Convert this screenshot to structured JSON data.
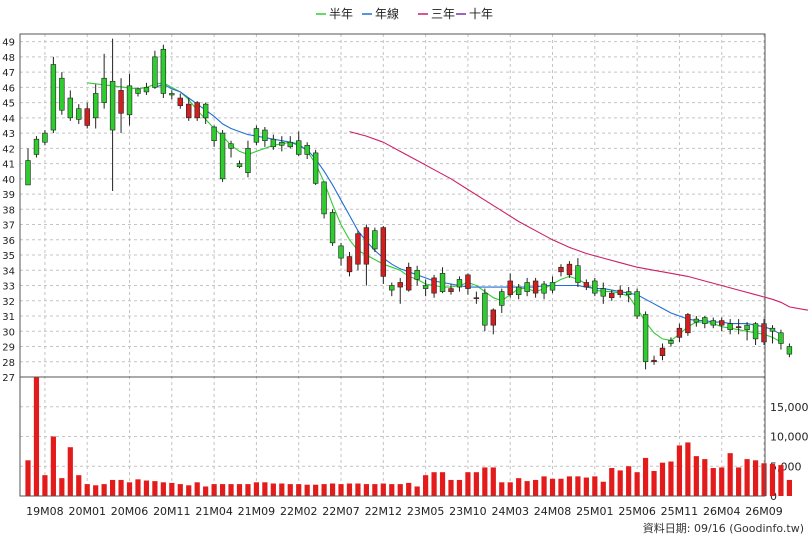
{
  "legend": [
    {
      "label": "半年",
      "color": "#33cc33"
    },
    {
      "label": "年線",
      "color": "#1f6fd6"
    },
    {
      "label": "三年",
      "color": "#cc1f66"
    },
    {
      "label": "十年",
      "color": "#7f2fa6"
    }
  ],
  "footer": {
    "source_text": "資料日期: 09/16  (Goodinfo.tw)"
  },
  "colors": {
    "up": "#d11f1f",
    "down": "#2fcc2f",
    "grid": "#c4c4c4",
    "volume": "#e41b1b"
  },
  "chart_data": {
    "type": "candlestick",
    "title": "",
    "legend_position": "top-center",
    "grid": true,
    "price_axis": {
      "ylim": [
        27,
        49.5
      ],
      "ticks": [
        27,
        28,
        29,
        30,
        31,
        32,
        33,
        34,
        35,
        36,
        37,
        38,
        39,
        40,
        41,
        42,
        43,
        44,
        45,
        46,
        47,
        48,
        49
      ],
      "position": "left"
    },
    "volume_axis": {
      "ylim": [
        0,
        20000
      ],
      "ticks": [
        0,
        5000,
        10000,
        15000
      ],
      "tick_labels": [
        "0",
        "5,000",
        "10,000",
        "15,000"
      ],
      "position": "right"
    },
    "x_ticks": [
      {
        "index": 2,
        "label": "19M08"
      },
      {
        "index": 7,
        "label": "20M01"
      },
      {
        "index": 12,
        "label": "20M06"
      },
      {
        "index": 17,
        "label": "20M11"
      },
      {
        "index": 22,
        "label": "21M04"
      },
      {
        "index": 27,
        "label": "21M09"
      },
      {
        "index": 32,
        "label": "22M02"
      },
      {
        "index": 37,
        "label": "22M07"
      },
      {
        "index": 42,
        "label": "22M12"
      },
      {
        "index": 47,
        "label": "23M05"
      },
      {
        "index": 52,
        "label": "23M10"
      },
      {
        "index": 57,
        "label": "24M03"
      },
      {
        "index": 62,
        "label": "24M08"
      },
      {
        "index": 67,
        "label": "25M01"
      },
      {
        "index": 72,
        "label": "25M06"
      },
      {
        "index": 77,
        "label": "25M11"
      },
      {
        "index": 82,
        "label": "26M04"
      },
      {
        "index": 87,
        "label": "26M09"
      }
    ],
    "candles": [
      [
        41.2,
        39.6,
        42.0,
        39.6,
        6000
      ],
      [
        42.6,
        41.6,
        42.8,
        41.4,
        20000
      ],
      [
        43.0,
        42.4,
        43.2,
        42.2,
        3500
      ],
      [
        47.5,
        43.2,
        48.0,
        43.0,
        10000
      ],
      [
        46.6,
        44.5,
        47.0,
        44.2,
        3000
      ],
      [
        45.3,
        44.0,
        45.8,
        43.8,
        8200
      ],
      [
        44.6,
        43.9,
        44.9,
        43.6,
        3500
      ],
      [
        43.5,
        44.6,
        45.0,
        43.3,
        2000
      ],
      [
        45.6,
        44.0,
        46.2,
        43.3,
        1800
      ],
      [
        46.6,
        45.0,
        48.2,
        44.6,
        2000
      ],
      [
        46.4,
        43.2,
        49.2,
        39.2,
        2700
      ],
      [
        44.3,
        45.8,
        46.6,
        43.0,
        2700
      ],
      [
        46.1,
        44.2,
        46.9,
        43.5,
        2300
      ],
      [
        45.9,
        45.6,
        46.0,
        45.4,
        2800
      ],
      [
        46.0,
        45.7,
        46.3,
        45.5,
        2600
      ],
      [
        48.0,
        46.0,
        48.4,
        45.9,
        2500
      ],
      [
        48.5,
        45.6,
        48.8,
        45.3,
        2300
      ],
      [
        45.6,
        45.5,
        45.8,
        45.2,
        2200
      ],
      [
        44.8,
        45.3,
        45.6,
        44.6,
        2000
      ],
      [
        44.0,
        44.9,
        45.3,
        43.8,
        1800
      ],
      [
        44.0,
        45.0,
        45.1,
        43.8,
        2300
      ],
      [
        44.9,
        44.0,
        45.0,
        43.6,
        1600
      ],
      [
        43.4,
        42.5,
        43.5,
        42.1,
        2000
      ],
      [
        43.0,
        40.0,
        43.2,
        39.8,
        2000
      ],
      [
        42.3,
        42.0,
        42.5,
        41.4,
        2000
      ],
      [
        41.0,
        40.8,
        41.2,
        40.7,
        2000
      ],
      [
        42.0,
        40.4,
        42.5,
        40.1,
        2000
      ],
      [
        43.3,
        42.4,
        43.5,
        42.2,
        2300
      ],
      [
        43.2,
        42.5,
        43.4,
        42.1,
        2300
      ],
      [
        42.6,
        42.1,
        42.9,
        41.9,
        2100
      ],
      [
        42.4,
        42.2,
        42.8,
        41.8,
        2100
      ],
      [
        42.4,
        42.1,
        42.8,
        42.0,
        2000
      ],
      [
        42.5,
        41.6,
        43.1,
        41.5,
        2000
      ],
      [
        42.2,
        41.6,
        42.4,
        41.3,
        1900
      ],
      [
        41.7,
        39.7,
        41.9,
        39.6,
        1900
      ],
      [
        39.8,
        37.7,
        39.8,
        37.4,
        2000
      ],
      [
        37.8,
        35.8,
        38.0,
        35.6,
        2100
      ],
      [
        35.6,
        34.8,
        35.8,
        34.3,
        2000
      ],
      [
        33.9,
        34.9,
        35.2,
        33.6,
        2100
      ],
      [
        34.4,
        36.4,
        36.6,
        34.0,
        2100
      ],
      [
        34.4,
        36.8,
        37.0,
        33.0,
        2000
      ],
      [
        36.6,
        35.4,
        36.8,
        35.2,
        2000
      ],
      [
        33.6,
        36.8,
        36.9,
        33.1,
        2100
      ],
      [
        33.0,
        32.7,
        33.2,
        32.3,
        2000
      ],
      [
        32.9,
        33.2,
        33.5,
        31.8,
        2000
      ],
      [
        32.7,
        34.2,
        34.5,
        32.6,
        2200
      ],
      [
        34.0,
        33.4,
        34.3,
        33.0,
        1600
      ],
      [
        33.0,
        32.8,
        33.4,
        32.3,
        3500
      ],
      [
        32.5,
        33.5,
        33.7,
        32.2,
        4000
      ],
      [
        33.8,
        32.6,
        34.2,
        32.5,
        4000
      ],
      [
        32.6,
        32.8,
        33.1,
        32.4,
        2700
      ],
      [
        33.4,
        32.9,
        33.6,
        32.6,
        2700
      ],
      [
        32.8,
        33.7,
        33.8,
        32.4,
        4000
      ],
      [
        32.2,
        32.2,
        32.6,
        31.8,
        4000
      ],
      [
        32.5,
        30.4,
        32.8,
        30.0,
        4800
      ],
      [
        30.4,
        31.4,
        31.5,
        29.8,
        4800
      ],
      [
        32.6,
        31.7,
        32.8,
        31.2,
        2300
      ],
      [
        32.4,
        33.3,
        33.8,
        32.2,
        2300
      ],
      [
        32.9,
        32.4,
        33.1,
        32.1,
        3000
      ],
      [
        33.2,
        32.6,
        33.5,
        32.3,
        2500
      ],
      [
        32.5,
        33.3,
        33.5,
        32.2,
        2700
      ],
      [
        33.1,
        32.5,
        33.3,
        32.1,
        3300
      ],
      [
        33.2,
        32.7,
        33.6,
        32.5,
        2900
      ],
      [
        33.9,
        34.2,
        34.4,
        33.6,
        2900
      ],
      [
        33.7,
        34.4,
        34.6,
        33.5,
        3300
      ],
      [
        34.3,
        33.2,
        34.8,
        32.9,
        3300
      ],
      [
        32.9,
        33.2,
        33.4,
        32.7,
        3100
      ],
      [
        33.3,
        32.5,
        33.5,
        32.3,
        3300
      ],
      [
        32.8,
        32.3,
        33.2,
        31.8,
        2400
      ],
      [
        32.2,
        32.5,
        32.7,
        32.0,
        4700
      ],
      [
        32.4,
        32.7,
        33.0,
        32.2,
        4300
      ],
      [
        32.6,
        32.4,
        32.9,
        31.9,
        5000
      ],
      [
        32.6,
        31.0,
        32.8,
        30.8,
        4000
      ],
      [
        31.1,
        28.0,
        31.3,
        27.5,
        6400
      ],
      [
        28.0,
        28.1,
        28.4,
        27.8,
        4200
      ],
      [
        28.4,
        28.9,
        29.2,
        28.1,
        5600
      ],
      [
        29.4,
        29.2,
        29.6,
        29.0,
        5800
      ],
      [
        29.6,
        30.2,
        30.5,
        29.3,
        8500
      ],
      [
        29.9,
        31.1,
        31.2,
        29.7,
        9000
      ],
      [
        30.8,
        30.6,
        31.0,
        30.3,
        6700
      ],
      [
        30.9,
        30.5,
        31.0,
        30.2,
        6200
      ],
      [
        30.7,
        30.4,
        30.9,
        30.2,
        4700
      ],
      [
        30.4,
        30.7,
        30.9,
        30.0,
        4800
      ],
      [
        30.5,
        30.1,
        30.8,
        29.8,
        7200
      ],
      [
        30.3,
        30.3,
        30.8,
        29.8,
        4800
      ],
      [
        30.4,
        30.1,
        30.6,
        29.4,
        6200
      ],
      [
        30.5,
        29.5,
        30.6,
        29.1,
        6000
      ],
      [
        29.3,
        30.5,
        30.8,
        29.1,
        5500
      ],
      [
        30.2,
        30.0,
        30.4,
        29.2,
        5400
      ],
      [
        29.9,
        29.2,
        30.1,
        28.8,
        5200
      ],
      [
        29.0,
        28.5,
        29.2,
        28.3,
        2700
      ]
    ],
    "moving_averages": {
      "half_year": [
        [
          7,
          46.3
        ],
        [
          13,
          45.9
        ],
        [
          14,
          46.0
        ],
        [
          15,
          46.2
        ],
        [
          16,
          46.3
        ],
        [
          17,
          46.0
        ],
        [
          18,
          45.7
        ],
        [
          19,
          45.2
        ],
        [
          20,
          44.5
        ],
        [
          21,
          43.9
        ],
        [
          22,
          43.3
        ],
        [
          23,
          42.8
        ],
        [
          24,
          42.2
        ],
        [
          25,
          41.8
        ],
        [
          26,
          41.6
        ],
        [
          27,
          41.8
        ],
        [
          28,
          42.0
        ],
        [
          29,
          42.2
        ],
        [
          30,
          42.3
        ],
        [
          31,
          42.4
        ],
        [
          32,
          42.3
        ],
        [
          33,
          41.8
        ],
        [
          34,
          41.0
        ],
        [
          35,
          39.8
        ],
        [
          36,
          38.3
        ],
        [
          37,
          37.0
        ],
        [
          38,
          36.0
        ],
        [
          39,
          35.3
        ],
        [
          40,
          35.0
        ],
        [
          41,
          34.7
        ],
        [
          42,
          34.4
        ],
        [
          43,
          34.2
        ],
        [
          44,
          34.0
        ],
        [
          45,
          33.6
        ],
        [
          46,
          33.4
        ],
        [
          47,
          33.1
        ],
        [
          48,
          33.0
        ],
        [
          49,
          32.9
        ],
        [
          50,
          32.9
        ],
        [
          51,
          33.0
        ],
        [
          52,
          33.2
        ],
        [
          53,
          33.0
        ],
        [
          54,
          32.6
        ],
        [
          55,
          32.2
        ],
        [
          56,
          32.0
        ],
        [
          57,
          32.4
        ],
        [
          58,
          32.8
        ],
        [
          59,
          32.8
        ],
        [
          60,
          32.6
        ],
        [
          61,
          32.8
        ],
        [
          62,
          33.1
        ],
        [
          63,
          33.4
        ],
        [
          64,
          33.6
        ],
        [
          65,
          33.4
        ],
        [
          66,
          33.1
        ],
        [
          67,
          32.7
        ],
        [
          68,
          32.6
        ],
        [
          69,
          32.6
        ],
        [
          70,
          32.5
        ],
        [
          71,
          32.3
        ],
        [
          72,
          31.5
        ],
        [
          73,
          30.6
        ],
        [
          74,
          29.9
        ],
        [
          75,
          29.5
        ],
        [
          76,
          29.4
        ],
        [
          77,
          29.8
        ],
        [
          78,
          30.3
        ],
        [
          79,
          30.6
        ],
        [
          80,
          30.6
        ],
        [
          81,
          30.5
        ],
        [
          82,
          30.3
        ],
        [
          83,
          30.2
        ],
        [
          84,
          30.1
        ],
        [
          85,
          30.0
        ],
        [
          86,
          29.9
        ],
        [
          87,
          29.8
        ],
        [
          88,
          29.6
        ],
        [
          89,
          29.3
        ]
      ],
      "annual": [
        [
          15,
          46.0
        ],
        [
          16,
          46.2
        ],
        [
          17,
          45.9
        ],
        [
          18,
          45.7
        ],
        [
          19,
          45.3
        ],
        [
          20,
          44.9
        ],
        [
          21,
          44.5
        ],
        [
          22,
          44.1
        ],
        [
          23,
          43.6
        ],
        [
          24,
          43.3
        ],
        [
          25,
          43.1
        ],
        [
          26,
          42.9
        ],
        [
          27,
          42.8
        ],
        [
          28,
          42.7
        ],
        [
          29,
          42.6
        ],
        [
          30,
          42.5
        ],
        [
          31,
          42.4
        ],
        [
          32,
          42.2
        ],
        [
          33,
          41.9
        ],
        [
          34,
          41.3
        ],
        [
          35,
          40.5
        ],
        [
          36,
          39.6
        ],
        [
          37,
          38.6
        ],
        [
          38,
          37.6
        ],
        [
          39,
          36.6
        ],
        [
          40,
          35.9
        ],
        [
          41,
          35.3
        ],
        [
          42,
          34.8
        ],
        [
          43,
          34.4
        ],
        [
          44,
          34.1
        ],
        [
          45,
          33.9
        ],
        [
          46,
          33.7
        ],
        [
          47,
          33.5
        ],
        [
          48,
          33.3
        ],
        [
          49,
          33.2
        ],
        [
          50,
          33.1
        ],
        [
          51,
          33.0
        ],
        [
          52,
          32.9
        ],
        [
          53,
          32.9
        ],
        [
          54,
          32.9
        ],
        [
          55,
          32.9
        ],
        [
          56,
          32.9
        ],
        [
          57,
          32.9
        ],
        [
          58,
          32.9
        ],
        [
          59,
          32.9
        ],
        [
          60,
          32.9
        ],
        [
          61,
          33.0
        ],
        [
          62,
          33.0
        ],
        [
          63,
          33.0
        ],
        [
          64,
          33.0
        ],
        [
          65,
          33.0
        ],
        [
          66,
          32.9
        ],
        [
          67,
          32.8
        ],
        [
          68,
          32.8
        ],
        [
          69,
          32.7
        ],
        [
          70,
          32.6
        ],
        [
          71,
          32.5
        ],
        [
          72,
          32.4
        ],
        [
          73,
          32.1
        ],
        [
          74,
          31.8
        ],
        [
          75,
          31.5
        ],
        [
          76,
          31.2
        ],
        [
          77,
          31.0
        ],
        [
          78,
          30.8
        ],
        [
          79,
          30.7
        ],
        [
          80,
          30.7
        ],
        [
          81,
          30.6
        ],
        [
          82,
          30.6
        ],
        [
          83,
          30.5
        ],
        [
          84,
          30.5
        ],
        [
          85,
          30.5
        ],
        [
          86,
          30.4
        ],
        [
          87,
          30.3
        ],
        [
          88,
          30.1
        ],
        [
          89,
          29.8
        ]
      ],
      "three_year": [
        [
          38,
          43.1
        ],
        [
          40,
          42.8
        ],
        [
          42,
          42.4
        ],
        [
          44,
          41.8
        ],
        [
          46,
          41.2
        ],
        [
          48,
          40.6
        ],
        [
          50,
          40.0
        ],
        [
          52,
          39.3
        ],
        [
          54,
          38.6
        ],
        [
          56,
          37.9
        ],
        [
          58,
          37.2
        ],
        [
          60,
          36.6
        ],
        [
          62,
          36.0
        ],
        [
          64,
          35.5
        ],
        [
          66,
          35.1
        ],
        [
          68,
          34.8
        ],
        [
          70,
          34.5
        ],
        [
          72,
          34.2
        ],
        [
          74,
          34.0
        ],
        [
          76,
          33.8
        ],
        [
          78,
          33.6
        ],
        [
          80,
          33.3
        ],
        [
          82,
          33.0
        ],
        [
          84,
          32.7
        ],
        [
          86,
          32.4
        ],
        [
          88,
          32.1
        ],
        [
          89,
          31.9
        ],
        [
          90,
          31.6
        ],
        [
          92,
          31.4
        ],
        [
          94,
          31.3
        ]
      ],
      "ten_year": []
    }
  }
}
